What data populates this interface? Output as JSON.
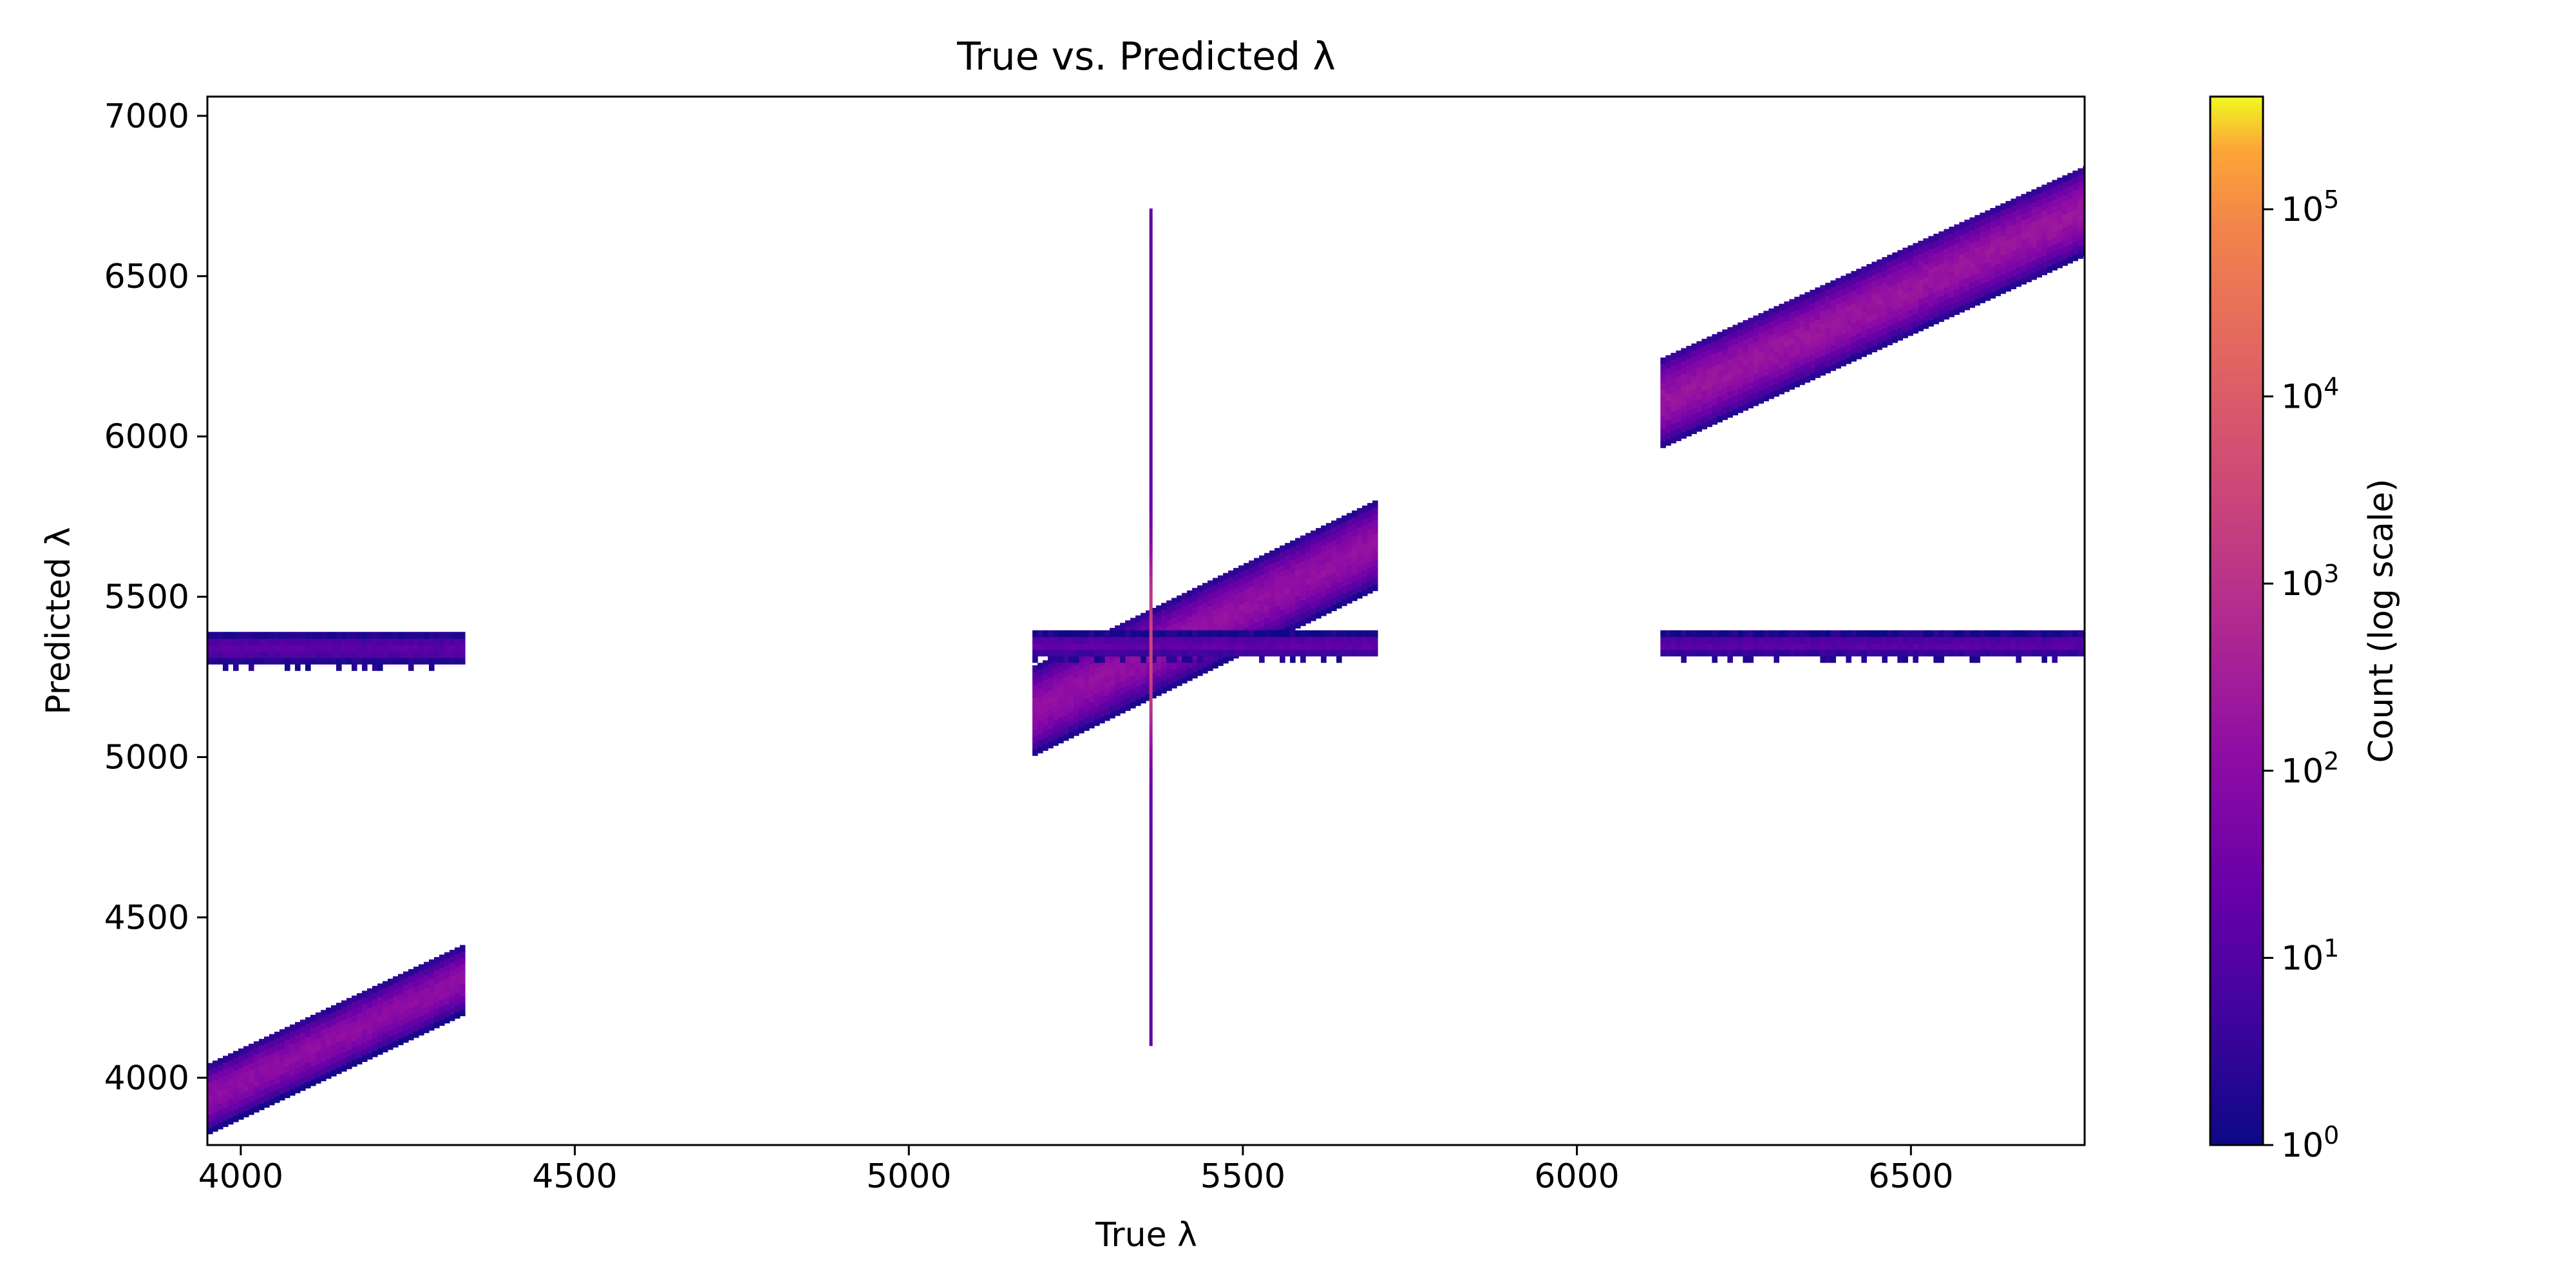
{
  "chart_data": {
    "type": "heatmap",
    "title": "True vs. Predicted λ",
    "xlabel": "True λ",
    "ylabel": "Predicted λ",
    "xlim": [
      3950,
      6760
    ],
    "ylim": [
      3790,
      7060
    ],
    "x_ticks": [
      4000,
      4500,
      5000,
      5500,
      6000,
      6500
    ],
    "y_ticks": [
      4000,
      4500,
      5000,
      5500,
      6000,
      6500,
      7000
    ],
    "grid": false,
    "colormap": "plasma",
    "colorbar": {
      "label": "Count (log scale)",
      "scale": "log",
      "range": [
        1,
        400000
      ],
      "tick_exponents": [
        0,
        1,
        2,
        3,
        4,
        5
      ],
      "tick_base": "10"
    },
    "clusters": [
      {
        "type": "band",
        "x_range": [
          3950,
          4330
        ],
        "y_start": 3930,
        "y_end": 4300,
        "width": 35,
        "core_count": 120
      },
      {
        "type": "band",
        "x_range": [
          3950,
          4330
        ],
        "y_start": 5330,
        "y_end": 5330,
        "width": 20,
        "core_count": 15
      },
      {
        "type": "band",
        "x_range": [
          5185,
          5700
        ],
        "y_start": 5140,
        "y_end": 5660,
        "width": 45,
        "core_count": 150
      },
      {
        "type": "band",
        "x_range": [
          5185,
          5700
        ],
        "y_start": 5340,
        "y_end": 5340,
        "width": 15,
        "core_count": 20
      },
      {
        "type": "band",
        "x_range": [
          6125,
          6760
        ],
        "y_start": 6100,
        "y_end": 6700,
        "width": 45,
        "core_count": 200
      },
      {
        "type": "band",
        "x_range": [
          6125,
          6760
        ],
        "y_start": 5340,
        "y_end": 5340,
        "width": 15,
        "core_count": 15
      },
      {
        "type": "vline",
        "x": 5360,
        "y_range": [
          4100,
          6700
        ],
        "core_y": 5330,
        "count": 20,
        "core_count": 3000
      }
    ]
  }
}
